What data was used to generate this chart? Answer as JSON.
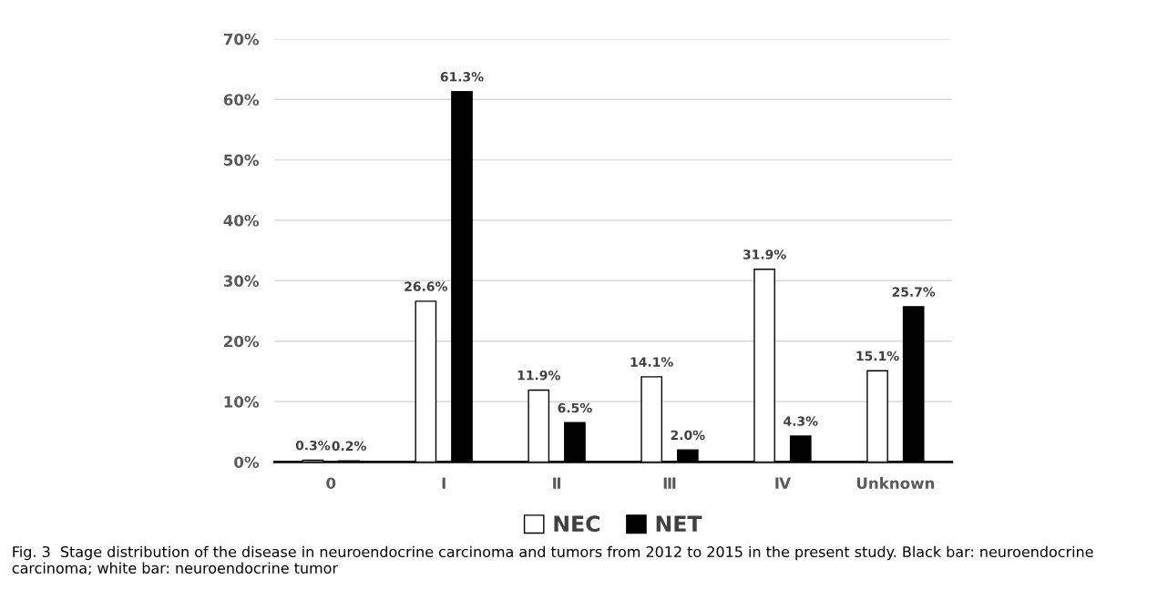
{
  "chart_data": {
    "type": "bar",
    "categories": [
      "0",
      "Ⅰ",
      "Ⅱ",
      "Ⅲ",
      "Ⅳ",
      "Unknown"
    ],
    "series": [
      {
        "name": "NEC",
        "color": "#ffffff",
        "values": [
          0.3,
          26.6,
          11.9,
          14.1,
          31.9,
          15.1
        ],
        "value_labels": [
          "0.3%",
          "26.6%",
          "11.9%",
          "14.1%",
          "31.9%",
          "15.1%"
        ]
      },
      {
        "name": "NET",
        "color": "#000000",
        "values": [
          0.2,
          61.3,
          6.5,
          2.0,
          4.3,
          25.7
        ],
        "value_labels": [
          "0.2%",
          "61.3%",
          "6.5%",
          "2.0%",
          "4.3%",
          "25.7%"
        ]
      }
    ],
    "ylim": [
      0,
      70
    ],
    "yticks": [
      {
        "value": 0,
        "label": "0%"
      },
      {
        "value": 10,
        "label": "10%"
      },
      {
        "value": 20,
        "label": "20%"
      },
      {
        "value": 30,
        "label": "30%"
      },
      {
        "value": 40,
        "label": "40%"
      },
      {
        "value": 50,
        "label": "50%"
      },
      {
        "value": 60,
        "label": "60%"
      },
      {
        "value": 70,
        "label": "70%"
      }
    ],
    "grid": "y",
    "legend": "bottom",
    "annotations": [
      "Fig. 3  Stage distribution of the disease in neuroendocrine carcinoma and tumors from 2012 to 2015 in the present study. Black bar: neuroendocrine carcinoma; white bar: neuroendocrine tumor"
    ]
  }
}
